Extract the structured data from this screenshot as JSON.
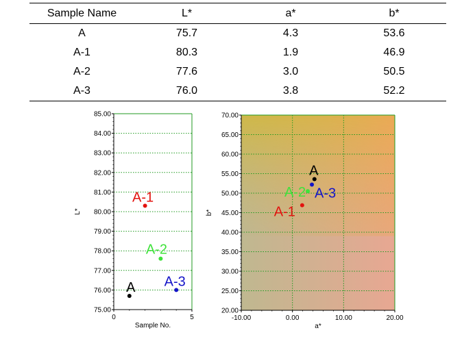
{
  "table": {
    "headers": [
      "Sample Name",
      "L*",
      "a*",
      "b*"
    ],
    "rows": [
      [
        "A",
        "75.7",
        "4.3",
        "53.6"
      ],
      [
        "A-1",
        "80.3",
        "1.9",
        "46.9"
      ],
      [
        "A-2",
        "77.6",
        "3.0",
        "50.5"
      ],
      [
        "A-3",
        "76.0",
        "3.8",
        "52.2"
      ]
    ]
  },
  "colors": {
    "A": "#000000",
    "A-1": "#e3130f",
    "A-2": "#3ee23a",
    "A-3": "#1414c8",
    "grid": "#1f9a1f"
  },
  "chart_data": [
    {
      "type": "scatter",
      "xlabel": "Sample No.",
      "ylabel": "L*",
      "xlim": [
        0,
        5
      ],
      "ylim": [
        75,
        85
      ],
      "x_ticks": [
        "0",
        "5"
      ],
      "y_ticks": [
        "75.00",
        "76.00",
        "77.00",
        "78.00",
        "79.00",
        "80.00",
        "81.00",
        "82.00",
        "83.00",
        "84.00",
        "85.00"
      ],
      "grid": true,
      "points": [
        {
          "label": "A",
          "x": 1,
          "y": 75.7
        },
        {
          "label": "A-1",
          "x": 2,
          "y": 80.3
        },
        {
          "label": "A-2",
          "x": 3,
          "y": 77.6
        },
        {
          "label": "A-3",
          "x": 4,
          "y": 76.0
        }
      ]
    },
    {
      "type": "scatter",
      "xlabel": "a*",
      "ylabel": "b*",
      "xlim": [
        -10,
        20
      ],
      "ylim": [
        20,
        70
      ],
      "x_ticks": [
        "-10.00",
        "0.00",
        "10.00",
        "20.00"
      ],
      "y_ticks": [
        "20.00",
        "25.00",
        "30.00",
        "35.00",
        "40.00",
        "45.00",
        "50.00",
        "55.00",
        "60.00",
        "65.00",
        "70.00"
      ],
      "grid": true,
      "background": "color gradient",
      "points": [
        {
          "label": "A",
          "x": 4.3,
          "y": 53.6
        },
        {
          "label": "A-1",
          "x": 1.9,
          "y": 46.9
        },
        {
          "label": "A-2",
          "x": 3.0,
          "y": 50.5
        },
        {
          "label": "A-3",
          "x": 3.8,
          "y": 52.2
        }
      ]
    }
  ]
}
